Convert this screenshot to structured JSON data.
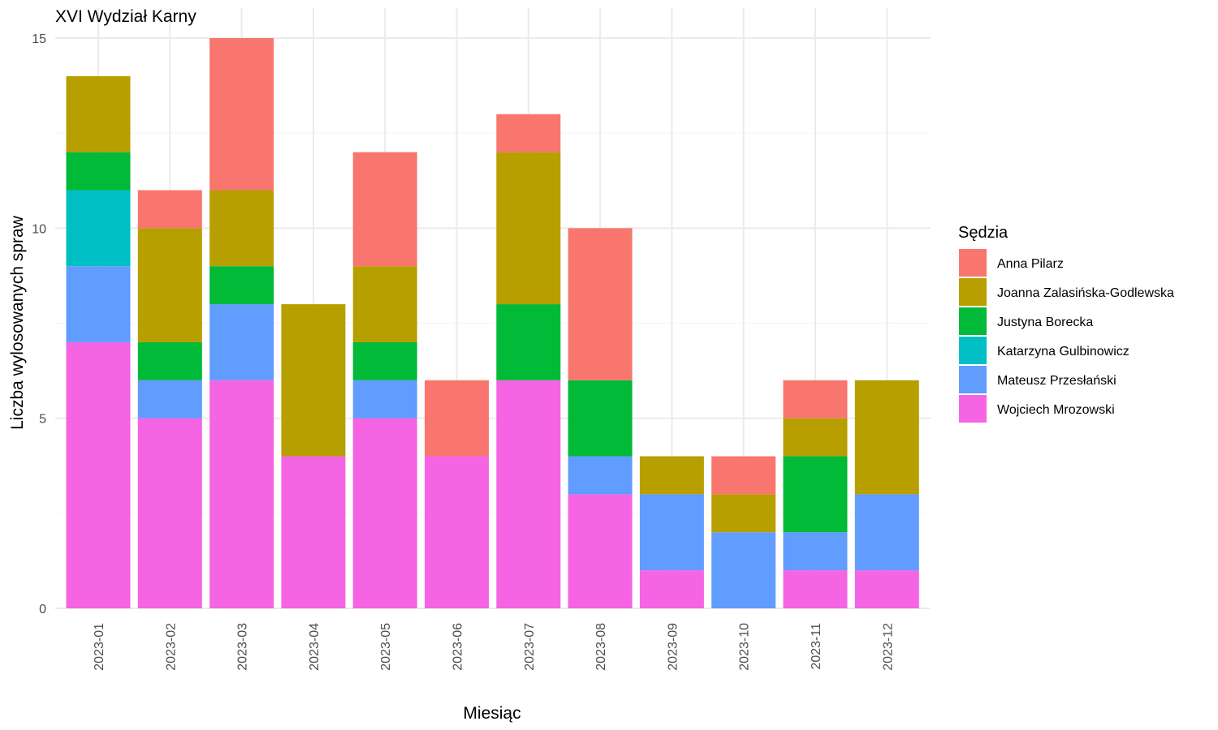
{
  "chart_data": {
    "type": "bar",
    "stacked": true,
    "title": "XVI Wydział Karny",
    "xlabel": "Miesiąc",
    "ylabel": "Liczba wylosowanych spraw",
    "ylim": [
      0,
      15
    ],
    "yticks": [
      "0",
      "5",
      "10",
      "15"
    ],
    "grid": true,
    "legend_title": "Sędzia",
    "legend_position": "right",
    "categories": [
      "2023-01",
      "2023-02",
      "2023-03",
      "2023-04",
      "2023-05",
      "2023-06",
      "2023-07",
      "2023-08",
      "2023-09",
      "2023-10",
      "2023-11",
      "2023-12"
    ],
    "series": [
      {
        "name": "Anna Pilarz",
        "color": "#F8766D",
        "values": [
          0,
          1,
          4,
          0,
          3,
          2,
          1,
          4,
          0,
          1,
          1,
          0
        ]
      },
      {
        "name": "Joanna Zalasińska-Godlewska",
        "color": "#B79F00",
        "values": [
          2,
          3,
          2,
          4,
          2,
          0,
          4,
          0,
          1,
          1,
          1,
          3
        ]
      },
      {
        "name": "Justyna Borecka",
        "color": "#00BA38",
        "values": [
          1,
          1,
          1,
          0,
          1,
          0,
          2,
          2,
          0,
          0,
          2,
          0
        ]
      },
      {
        "name": "Katarzyna Gulbinowicz",
        "color": "#00BFC4",
        "values": [
          2,
          0,
          0,
          0,
          0,
          0,
          0,
          0,
          0,
          0,
          0,
          0
        ]
      },
      {
        "name": "Mateusz Przesłański",
        "color": "#619CFF",
        "values": [
          2,
          1,
          2,
          0,
          1,
          0,
          0,
          1,
          2,
          2,
          1,
          2
        ]
      },
      {
        "name": "Wojciech Mrozowski",
        "color": "#F564E3",
        "values": [
          7,
          5,
          6,
          4,
          5,
          4,
          6,
          3,
          1,
          0,
          1,
          1
        ]
      }
    ]
  }
}
